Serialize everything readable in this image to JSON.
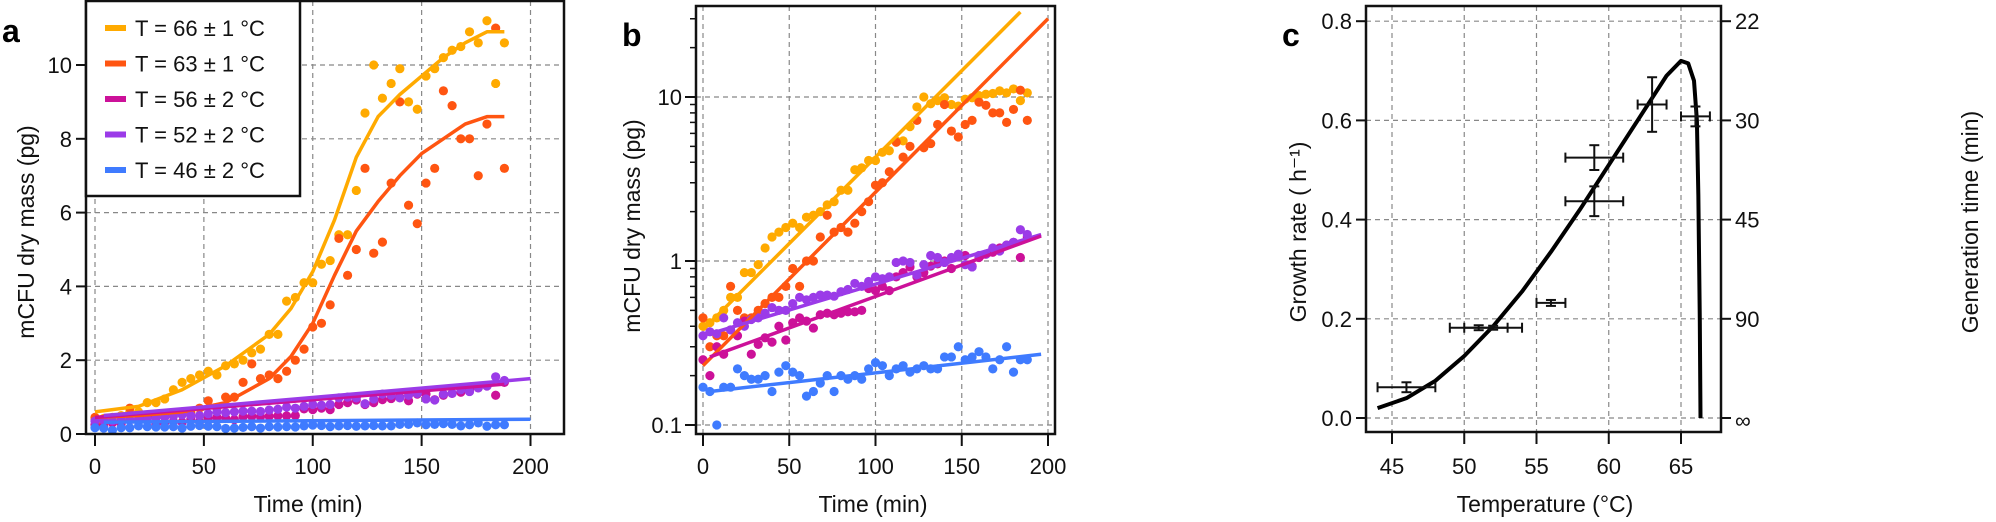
{
  "colors": {
    "T66": "#FFAA00",
    "T63": "#FF5511",
    "T56": "#CC1199",
    "T52": "#9B3BE8",
    "T46": "#3F7BFF",
    "black": "#000000"
  },
  "chart_data": [
    {
      "panel": "a",
      "type": "scatter",
      "xlabel": "Time (min)",
      "ylabel": "mCFU dry mass (pg)",
      "xlim": [
        0,
        200
      ],
      "ylim": [
        0,
        11.7
      ],
      "xticks": [
        "0",
        "50",
        "100",
        "150",
        "200"
      ],
      "yticks": [
        "0",
        "2",
        "4",
        "6",
        "8",
        "10"
      ],
      "grid": true,
      "legend_placement": "top-left",
      "fits": [
        {
          "series": "T66",
          "t": [
            0,
            20,
            40,
            60,
            80,
            90,
            100,
            110,
            120,
            130,
            140,
            150,
            160,
            170,
            180,
            188
          ],
          "v": [
            0.6,
            0.75,
            1.2,
            1.85,
            2.7,
            3.4,
            4.4,
            5.8,
            7.5,
            8.6,
            9.2,
            9.7,
            10.2,
            10.6,
            10.9,
            10.9
          ]
        },
        {
          "series": "T63",
          "t": [
            0,
            20,
            40,
            60,
            80,
            90,
            100,
            110,
            120,
            130,
            140,
            150,
            160,
            170,
            180,
            188
          ],
          "v": [
            0.45,
            0.5,
            0.6,
            0.85,
            1.5,
            2.1,
            3.0,
            4.3,
            5.5,
            6.3,
            7.0,
            7.6,
            8.0,
            8.4,
            8.6,
            8.6
          ]
        },
        {
          "series": "T56",
          "t": [
            0,
            188
          ],
          "v": [
            0.45,
            1.35
          ]
        },
        {
          "series": "T52",
          "t": [
            4,
            200
          ],
          "v": [
            0.5,
            1.5
          ]
        },
        {
          "series": "T46",
          "t": [
            4,
            200
          ],
          "v": [
            0.32,
            0.4
          ]
        }
      ]
    },
    {
      "panel": "b",
      "type": "scatter",
      "xlabel": "Time (min)",
      "ylabel": "mCFU dry mass (pg)",
      "yscale": "log",
      "xlim": [
        0,
        200
      ],
      "ylim": [
        0.09,
        35
      ],
      "xticks": [
        "0",
        "50",
        "100",
        "150",
        "200"
      ],
      "yticks": [
        "0.1",
        "1",
        "10"
      ],
      "grid": true,
      "fits": [
        {
          "series": "T66",
          "t": [
            0,
            184
          ],
          "v": [
            0.38,
            33
          ]
        },
        {
          "series": "T63",
          "t": [
            0,
            200
          ],
          "v": [
            0.23,
            30
          ]
        },
        {
          "series": "T52",
          "t": [
            4,
            196
          ],
          "v": [
            0.36,
            1.45
          ]
        },
        {
          "series": "T56",
          "t": [
            4,
            196
          ],
          "v": [
            0.26,
            1.42
          ]
        },
        {
          "series": "T46",
          "t": [
            4,
            196
          ],
          "v": [
            0.16,
            0.27
          ]
        }
      ]
    },
    {
      "panel": "c",
      "type": "scatter",
      "xlabel": "Temperature (°C)",
      "ylabel": "Growth rate ( h⁻¹)",
      "ylabel_right": "Generation time  (min)",
      "xlim": [
        43.2,
        67.8
      ],
      "ylim": [
        -0.02,
        0.835
      ],
      "xticks": [
        "45",
        "50",
        "55",
        "60",
        "65"
      ],
      "yticks": [
        "0.0",
        "0.2",
        "0.4",
        "0.6",
        "0.8"
      ],
      "yticks_right": [
        "∞",
        "90",
        "45",
        "30",
        "22"
      ],
      "grid": true,
      "points": [
        {
          "T": 46,
          "rate": 0.062,
          "xerr": 2,
          "yerr": 0.01
        },
        {
          "T": 51,
          "rate": 0.182,
          "xerr": 2,
          "yerr": 0.005
        },
        {
          "T": 52,
          "rate": 0.182,
          "xerr": 2,
          "yerr": 0.004
        },
        {
          "T": 56,
          "rate": 0.232,
          "xerr": 1,
          "yerr": 0.006
        },
        {
          "T": 59,
          "rate": 0.437,
          "xerr": 2,
          "yerr": 0.03
        },
        {
          "T": 59,
          "rate": 0.525,
          "xerr": 2,
          "yerr": 0.025
        },
        {
          "T": 63,
          "rate": 0.632,
          "xerr": 1,
          "yerr": 0.055
        },
        {
          "T": 66,
          "rate": 0.608,
          "xerr": 1,
          "yerr": 0.02
        }
      ],
      "model_curve": {
        "T": [
          44,
          46,
          48,
          50,
          52,
          54,
          56,
          58,
          60,
          62,
          63,
          64,
          65,
          65.5,
          65.9,
          66.1,
          66.2,
          66.3,
          66.35
        ],
        "rate": [
          0.02,
          0.04,
          0.075,
          0.125,
          0.185,
          0.255,
          0.335,
          0.42,
          0.51,
          0.6,
          0.645,
          0.69,
          0.72,
          0.715,
          0.68,
          0.6,
          0.45,
          0.2,
          0.0
        ]
      }
    }
  ],
  "series": [
    {
      "key": "T66",
      "label": "T = 66 ± 1 °C",
      "values": [
        0.4,
        0.42,
        0.45,
        0.5,
        0.6,
        0.6,
        0.85,
        0.85,
        0.95,
        1.2,
        1.4,
        1.5,
        1.6,
        1.7,
        1.6,
        1.85,
        1.9,
        2.0,
        2.2,
        2.3,
        2.7,
        2.7,
        3.6,
        3.7,
        4.1,
        4.1,
        4.6,
        4.7,
        5.4,
        5.4,
        6.6,
        8.7,
        10.0,
        9.1,
        9.5,
        9.9,
        9.0,
        8.8,
        9.7,
        9.9,
        10.2,
        10.4,
        10.5,
        10.9,
        10.6,
        11.2,
        9.5,
        10.6
      ]
    },
    {
      "key": "T63",
      "label": "T = 63 ± 1 °C",
      "values": [
        0.45,
        0.3,
        0.35,
        0.35,
        0.7,
        0.5,
        0.45,
        0.45,
        0.5,
        0.55,
        0.6,
        0.6,
        0.7,
        0.9,
        0.7,
        1.0,
        1.0,
        1.4,
        1.9,
        1.5,
        1.6,
        1.5,
        1.7,
        2.0,
        2.3,
        2.9,
        3.0,
        3.5,
        5.3,
        4.3,
        5.0,
        7.2,
        4.9,
        5.2,
        6.8,
        9.0,
        6.2,
        5.7,
        6.8,
        7.2,
        9.3,
        8.9,
        8.0,
        8.0,
        7.0,
        8.4,
        11.0,
        7.2
      ]
    },
    {
      "key": "T56",
      "label": "T = 56 ± 2 °C",
      "values": [
        0.25,
        0.2,
        0.3,
        0.27,
        0.38,
        0.35,
        0.43,
        0.27,
        0.31,
        0.34,
        0.32,
        0.4,
        0.33,
        0.42,
        0.45,
        0.43,
        0.39,
        0.47,
        0.48,
        0.47,
        0.48,
        0.49,
        0.49,
        0.5,
        0.68,
        0.66,
        0.7,
        0.66,
        0.8,
        0.85,
        0.92,
        0.8,
        0.85,
        0.93,
        0.96,
        1.0,
        0.9,
        1.08,
        1.08,
        0.93,
        1.05,
        1.1,
        1.13,
        1.2,
        1.25,
        1.3,
        1.05,
        1.4
      ]
    },
    {
      "key": "T52",
      "label": "T = 52 ± 2 °C",
      "values": [
        0.35,
        0.37,
        0.36,
        0.45,
        0.38,
        0.42,
        0.4,
        0.44,
        0.45,
        0.48,
        0.52,
        0.5,
        0.5,
        0.55,
        0.6,
        0.58,
        0.6,
        0.62,
        0.62,
        0.61,
        0.65,
        0.67,
        0.73,
        0.7,
        0.75,
        0.8,
        0.78,
        0.8,
        0.98,
        1.0,
        0.98,
        0.82,
        0.95,
        1.08,
        1.05,
        0.98,
        1.05,
        1.1,
        0.95,
        0.92,
        1.08,
        1.1,
        1.2,
        1.15,
        1.25,
        1.3,
        1.55,
        1.45
      ]
    },
    {
      "key": "T46",
      "label": "T = 46 ± 2 °C",
      "values": [
        0.17,
        0.16,
        0.1,
        0.17,
        0.17,
        0.22,
        0.2,
        0.19,
        0.19,
        0.2,
        0.16,
        0.21,
        0.23,
        0.21,
        0.2,
        0.15,
        0.16,
        0.18,
        0.2,
        0.16,
        0.2,
        0.19,
        0.2,
        0.19,
        0.22,
        0.24,
        0.23,
        0.2,
        0.22,
        0.23,
        0.21,
        0.22,
        0.23,
        0.22,
        0.22,
        0.26,
        0.26,
        0.3,
        0.25,
        0.26,
        0.28,
        0.26,
        0.22,
        0.25,
        0.3,
        0.21,
        0.25,
        0.25
      ]
    }
  ],
  "time_step_min": 4,
  "panel_letters": {
    "a": "a",
    "b": "b",
    "c": "c"
  }
}
